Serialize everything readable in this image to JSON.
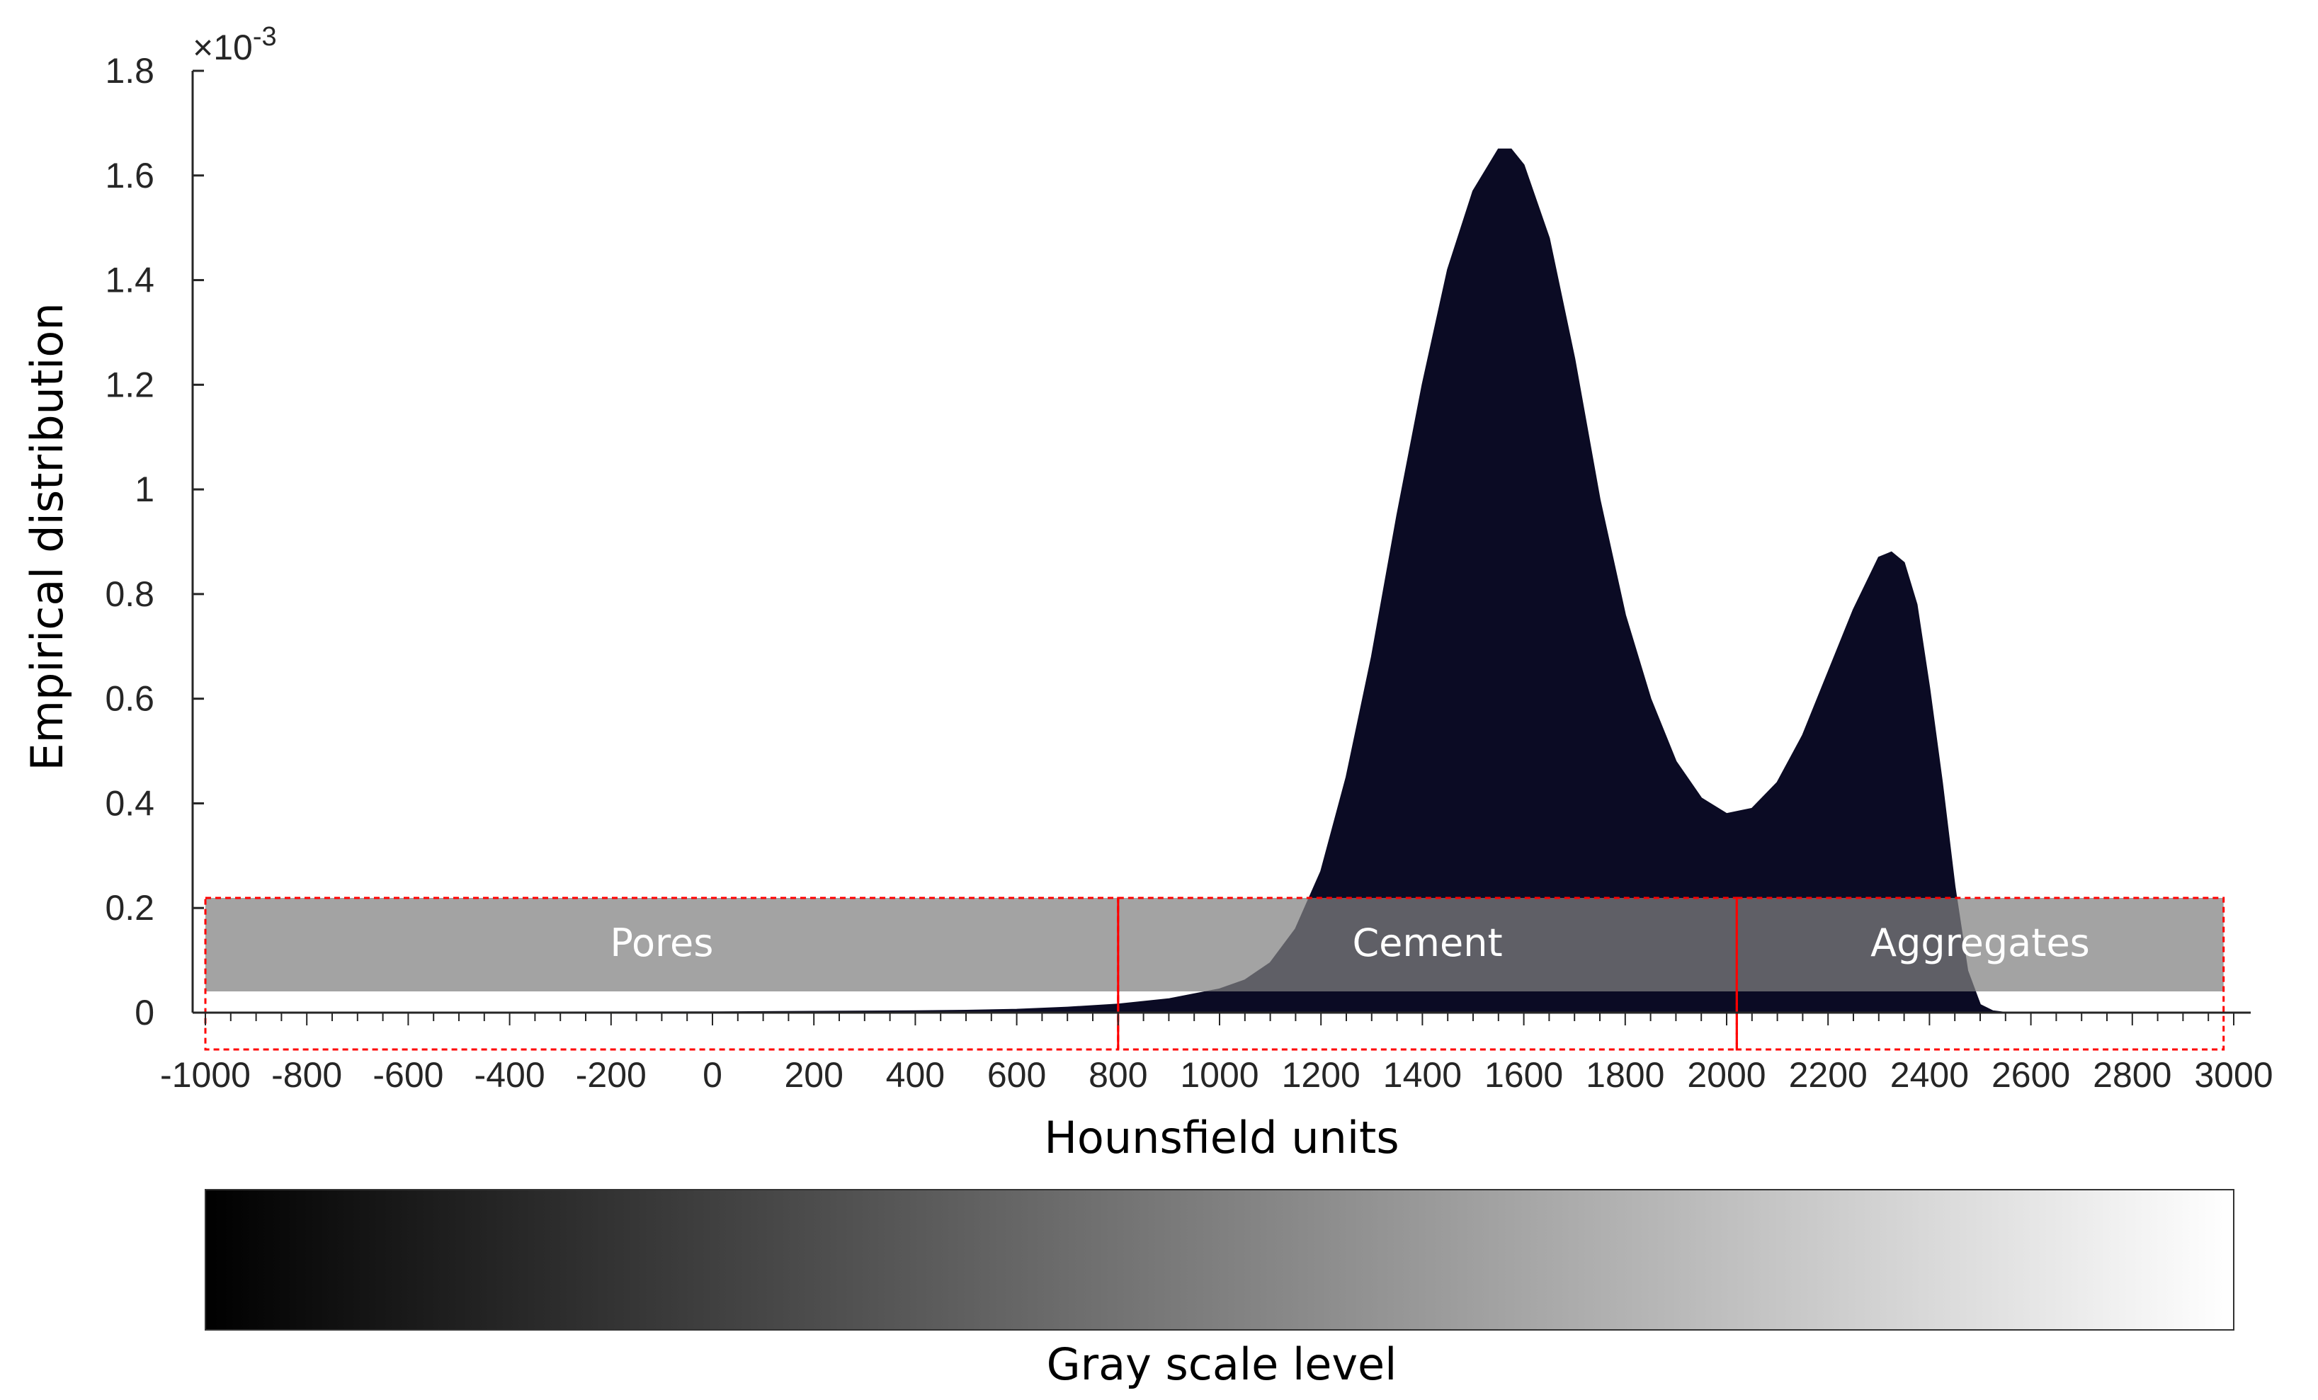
{
  "chart_data": {
    "type": "area",
    "ylabel": "Empirical distribution",
    "xlabel": "Hounsfield units",
    "y_exponent_label": "×10",
    "y_exponent_power": "-3",
    "xlim": [
      -1000,
      3000
    ],
    "ylim": [
      0,
      1.8
    ],
    "x_ticks": [
      "-1000",
      "-800",
      "-600",
      "-400",
      "-200",
      "0",
      "200",
      "400",
      "600",
      "800",
      "1000",
      "1200",
      "1400",
      "1600",
      "1800",
      "2000",
      "2200",
      "2400",
      "2600",
      "2800",
      "3000"
    ],
    "y_ticks": [
      "0",
      "0.2",
      "0.4",
      "0.6",
      "0.8",
      "1",
      "1.2",
      "1.4",
      "1.6",
      "1.8"
    ],
    "grid": false,
    "series": [
      {
        "color": "#0b0b24",
        "x": [
          -1000,
          0,
          200,
          400,
          500,
          600,
          700,
          800,
          900,
          1000,
          1050,
          1100,
          1150,
          1200,
          1250,
          1300,
          1350,
          1400,
          1450,
          1500,
          1550,
          1575,
          1600,
          1650,
          1700,
          1750,
          1800,
          1850,
          1900,
          1950,
          2000,
          2050,
          2100,
          2150,
          2200,
          2250,
          2300,
          2325,
          2350,
          2375,
          2400,
          2425,
          2450,
          2475,
          2500,
          2525,
          2550
        ],
        "y": [
          0.0,
          0.001,
          0.002,
          0.003,
          0.004,
          0.006,
          0.01,
          0.016,
          0.026,
          0.045,
          0.062,
          0.095,
          0.16,
          0.27,
          0.45,
          0.68,
          0.95,
          1.2,
          1.42,
          1.57,
          1.65,
          1.65,
          1.62,
          1.48,
          1.25,
          0.98,
          0.76,
          0.6,
          0.48,
          0.41,
          0.38,
          0.39,
          0.44,
          0.53,
          0.65,
          0.77,
          0.87,
          0.88,
          0.86,
          0.78,
          0.62,
          0.44,
          0.24,
          0.08,
          0.015,
          0.003,
          0.0
        ]
      }
    ],
    "regions": [
      {
        "name": "Pores",
        "x_start": -1000,
        "x_end": 800
      },
      {
        "name": "Cement",
        "x_start": 800,
        "x_end": 2020
      },
      {
        "name": "Aggregates",
        "x_start": 2020,
        "x_end": 2980
      }
    ],
    "colorbar": {
      "label": "Gray scale level",
      "from_color": "#000000",
      "to_color": "#ffffff"
    },
    "region_fill_color": "#808080",
    "region_border_color": "#ff0000"
  }
}
